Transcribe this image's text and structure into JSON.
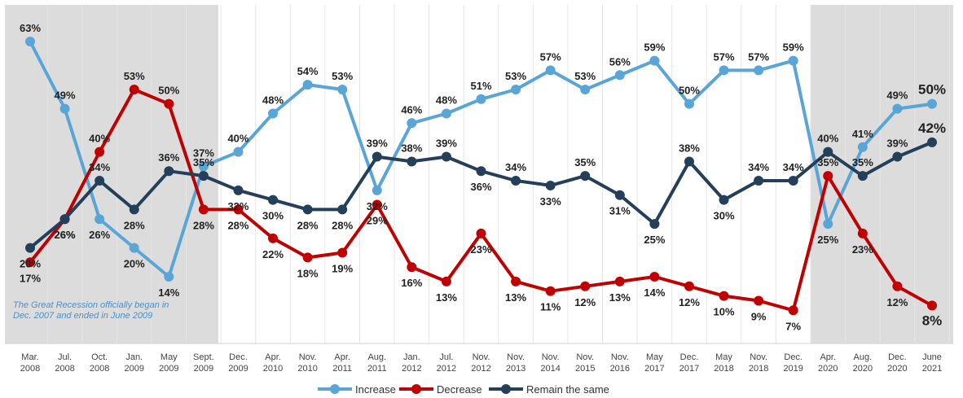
{
  "chart_data": {
    "type": "line",
    "categories": [
      [
        "Mar.",
        "2008"
      ],
      [
        "Jul.",
        "2008"
      ],
      [
        "Oct.",
        "2008"
      ],
      [
        "Jan.",
        "2009"
      ],
      [
        "May",
        "2009"
      ],
      [
        "Sept.",
        "2009"
      ],
      [
        "Dec.",
        "2009"
      ],
      [
        "Apr.",
        "2010"
      ],
      [
        "Nov.",
        "2010"
      ],
      [
        "Apr.",
        "2011"
      ],
      [
        "Aug.",
        "2011"
      ],
      [
        "Jan.",
        "2012"
      ],
      [
        "Jul.",
        "2012"
      ],
      [
        "Nov.",
        "2012"
      ],
      [
        "Nov.",
        "2013"
      ],
      [
        "Nov.",
        "2014"
      ],
      [
        "Nov.",
        "2015"
      ],
      [
        "Nov.",
        "2016"
      ],
      [
        "May",
        "2017"
      ],
      [
        "Dec.",
        "2017"
      ],
      [
        "May",
        "2018"
      ],
      [
        "Nov.",
        "2018"
      ],
      [
        "Dec.",
        "2019"
      ],
      [
        "Apr.",
        "2020"
      ],
      [
        "Aug.",
        "2020"
      ],
      [
        "Dec.",
        "2020"
      ],
      [
        "June",
        "2021"
      ]
    ],
    "series": [
      {
        "name": "Increase",
        "color": "#5aa5d8",
        "values": [
          63,
          49,
          26,
          20,
          14,
          37,
          40,
          48,
          54,
          53,
          32,
          46,
          48,
          51,
          53,
          57,
          53,
          56,
          59,
          50,
          57,
          57,
          59,
          25,
          41,
          49,
          50
        ]
      },
      {
        "name": "Decrease",
        "color": "#c00000",
        "values": [
          17,
          26,
          40,
          53,
          50,
          28,
          28,
          22,
          18,
          19,
          29,
          16,
          13,
          23,
          13,
          11,
          12,
          13,
          14,
          12,
          10,
          9,
          7,
          35,
          23,
          12,
          8
        ]
      },
      {
        "name": "Remain the same",
        "color": "#243f5a",
        "values": [
          20,
          26,
          34,
          28,
          36,
          35,
          32,
          30,
          28,
          28,
          39,
          38,
          39,
          36,
          34,
          33,
          35,
          31,
          25,
          38,
          30,
          34,
          34,
          40,
          35,
          39,
          42
        ]
      }
    ],
    "ylim": [
      0,
      70
    ],
    "grid": "vertical",
    "shaded_periods": [
      [
        0,
        5
      ],
      [
        23,
        26
      ]
    ],
    "legend_position": "bottom-center",
    "annotation": [
      "The Great Recession officially began in",
      "Dec. 2007 and ended in June 2009"
    ]
  }
}
